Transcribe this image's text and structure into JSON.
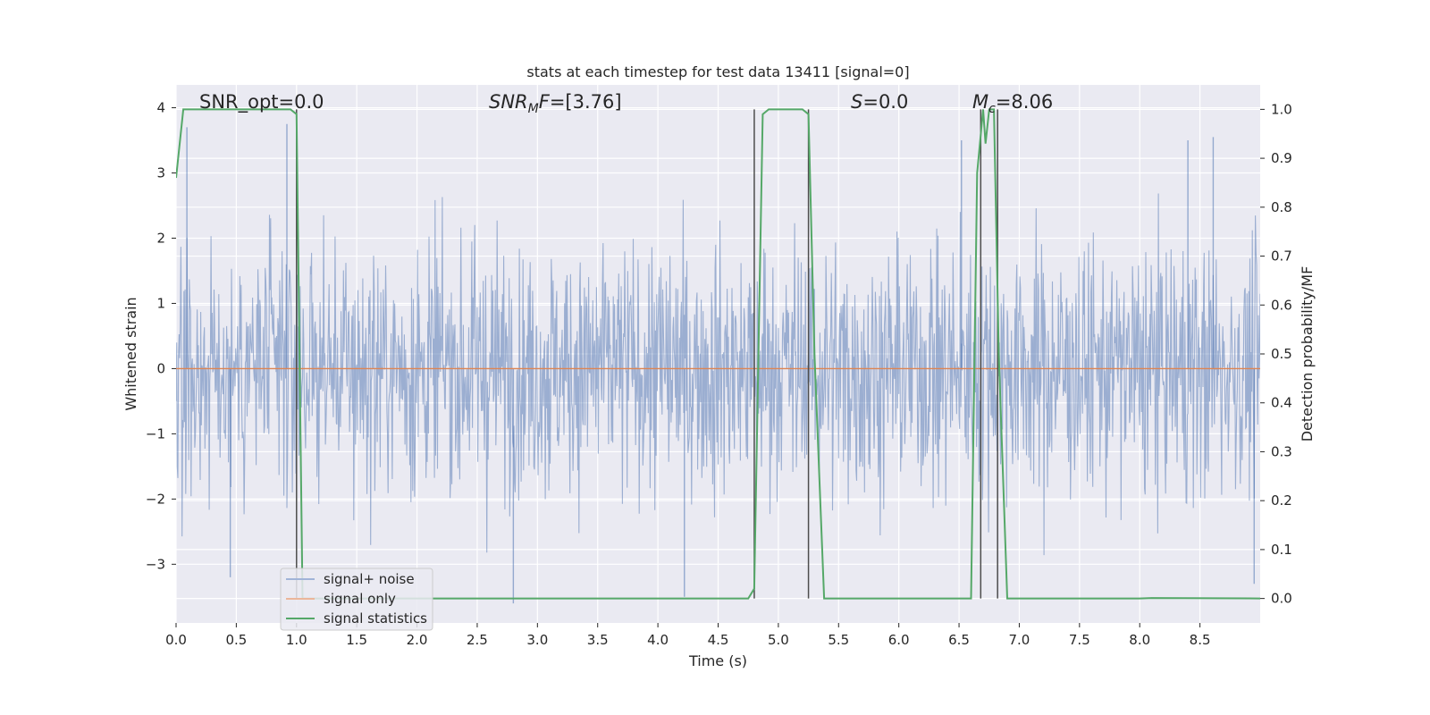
{
  "chart_data": {
    "type": "line",
    "title": "stats at each timestep for test data 13411 [signal=0]",
    "xlabel": "Time (s)",
    "ylabel_left": "Whitened strain",
    "ylabel_right": "Detection probability/MF",
    "xlim": [
      0.0,
      9.0
    ],
    "ylim_left": [
      -3.9,
      4.35
    ],
    "ylim_right": [
      -0.05,
      1.05
    ],
    "xticks": [
      0.0,
      0.5,
      1.0,
      1.5,
      2.0,
      2.5,
      3.0,
      3.5,
      4.0,
      4.5,
      5.0,
      5.5,
      6.0,
      6.5,
      7.0,
      7.5,
      8.0,
      8.5
    ],
    "xtick_labels": [
      "0.0",
      "0.5",
      "1.0",
      "1.5",
      "2.0",
      "2.5",
      "3.0",
      "3.5",
      "4.0",
      "4.5",
      "5.0",
      "5.5",
      "6.0",
      "6.5",
      "7.0",
      "7.5",
      "8.0",
      "8.5"
    ],
    "yticks_left": [
      4,
      3,
      2,
      1,
      0,
      -1,
      -2,
      -3
    ],
    "ytick_labels_left": [
      "4",
      "3",
      "2",
      "1",
      "0",
      "−1",
      "−2",
      "−3"
    ],
    "yticks_right": [
      1.0,
      0.9,
      0.8,
      0.7,
      0.6,
      0.5,
      0.4,
      0.3,
      0.2,
      0.1,
      0.0
    ],
    "ytick_labels_right": [
      "1.0",
      "0.9",
      "0.8",
      "0.7",
      "0.6",
      "0.5",
      "0.4",
      "0.3",
      "0.2",
      "0.1",
      "0.0"
    ],
    "grid": true,
    "background": "#EAEAF2",
    "annotations": {
      "snr_opt": "SNR_opt=0.0",
      "snr_mf_main": "SNR",
      "snr_mf_sub": "M",
      "snr_mf_rest": "F=[3.76]",
      "s_main": "S",
      "s_rest": "=0.0",
      "mc_main": "M",
      "mc_sub": "c",
      "mc_rest": "=8.06"
    },
    "series": [
      {
        "name": "signal+ noise",
        "color": "#4C72B0",
        "axis": "left",
        "kind": "noise",
        "envelope": {
          "typical_range": [
            -1.3,
            1.3
          ],
          "peak_range": [
            -3.6,
            3.75
          ]
        },
        "extreme_spikes": [
          {
            "x": 0.09,
            "y": 3.7
          },
          {
            "x": 0.92,
            "y": 3.75
          },
          {
            "x": 2.8,
            "y": -3.6
          },
          {
            "x": 4.22,
            "y": -3.5
          },
          {
            "x": 6.52,
            "y": 3.5
          },
          {
            "x": 8.61,
            "y": 3.55
          },
          {
            "x": 8.4,
            "y": 3.5
          },
          {
            "x": 8.95,
            "y": -3.3
          },
          {
            "x": 0.45,
            "y": -3.2
          }
        ]
      },
      {
        "name": "signal only",
        "color": "#DD8452",
        "axis": "left",
        "x": [
          0.0,
          9.0
        ],
        "y": [
          0.0,
          0.0
        ]
      },
      {
        "name": "signal statistics",
        "color": "#55A868",
        "axis": "right",
        "x": [
          0.0,
          0.06,
          0.1,
          0.5,
          0.95,
          1.0,
          1.05,
          1.1,
          4.5,
          4.75,
          4.8,
          4.87,
          4.92,
          5.2,
          5.25,
          5.3,
          5.38,
          6.6,
          6.65,
          6.7,
          6.72,
          6.75,
          6.79,
          6.83,
          6.9,
          6.95,
          8.0,
          8.1,
          9.0
        ],
        "y": [
          0.86,
          1.0,
          1.0,
          1.0,
          1.0,
          0.99,
          0.0,
          0.0,
          0.0,
          0.0,
          0.02,
          0.99,
          1.0,
          1.0,
          0.99,
          0.5,
          0.0,
          0.0,
          0.87,
          1.0,
          0.93,
          1.0,
          1.0,
          0.5,
          0.0,
          0.0,
          0.0,
          0.001,
          0.0
        ]
      }
    ],
    "marker_lines": {
      "color": "#4D4D4D",
      "x": [
        1.0,
        4.8,
        5.25,
        6.68,
        6.82
      ],
      "y_range_right": [
        0.0,
        1.0
      ]
    },
    "legend": {
      "placement": "lower-left",
      "entries": [
        {
          "label": "signal+ noise",
          "color": "#A1B4D8"
        },
        {
          "label": "signal only",
          "color": "#EBB69A"
        },
        {
          "label": "signal statistics",
          "color": "#55A868"
        }
      ]
    }
  }
}
